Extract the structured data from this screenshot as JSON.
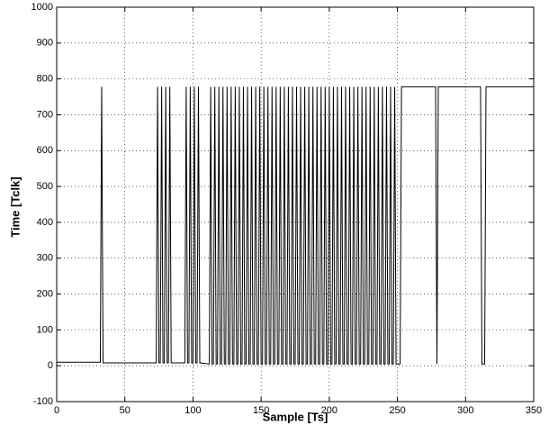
{
  "chart_data": {
    "type": "line",
    "x_label": "Sample [Ts]",
    "y_label": "Time [Tclk]",
    "xlim": [
      0,
      350
    ],
    "xticks": [
      0,
      50,
      100,
      150,
      200,
      250,
      300,
      350
    ],
    "ylim": [
      -100,
      1000
    ],
    "yticks": [
      -100,
      0,
      100,
      200,
      300,
      400,
      500,
      600,
      700,
      800,
      900,
      1000
    ],
    "grid": true,
    "color": "#000000",
    "x": [
      0,
      32,
      33,
      34,
      73,
      74,
      75,
      76,
      77,
      78,
      79,
      80,
      81,
      82,
      83,
      84,
      94,
      95,
      96,
      97,
      98,
      99,
      100,
      101,
      102,
      103,
      104,
      105,
      112,
      113,
      114,
      115,
      116,
      117,
      118,
      119,
      120,
      121,
      122,
      123,
      124,
      125,
      126,
      127,
      128,
      129,
      130,
      131,
      132,
      133,
      134,
      135,
      136,
      137,
      138,
      139,
      140,
      141,
      142,
      143,
      144,
      145,
      146,
      147,
      148,
      149,
      150,
      151,
      152,
      153,
      154,
      155,
      156,
      157,
      158,
      159,
      160,
      161,
      162,
      163,
      164,
      165,
      166,
      167,
      168,
      169,
      170,
      171,
      172,
      173,
      174,
      175,
      176,
      177,
      178,
      179,
      180,
      181,
      182,
      183,
      184,
      185,
      186,
      187,
      188,
      189,
      190,
      191,
      192,
      193,
      194,
      195,
      196,
      197,
      198,
      199,
      200,
      201,
      202,
      203,
      204,
      205,
      206,
      207,
      208,
      209,
      210,
      211,
      212,
      213,
      214,
      215,
      216,
      217,
      218,
      219,
      220,
      221,
      222,
      223,
      224,
      225,
      226,
      227,
      228,
      229,
      230,
      231,
      232,
      233,
      234,
      235,
      236,
      237,
      238,
      239,
      240,
      241,
      242,
      243,
      244,
      245,
      246,
      247,
      248,
      249,
      252,
      253,
      278,
      279,
      280,
      311,
      312,
      314,
      315,
      350
    ],
    "values": [
      10,
      10,
      778,
      8,
      8,
      778,
      8,
      8,
      778,
      8,
      8,
      778,
      8,
      8,
      778,
      8,
      8,
      778,
      8,
      8,
      778,
      8,
      8,
      778,
      8,
      8,
      778,
      8,
      5,
      778,
      5,
      5,
      778,
      5,
      5,
      778,
      5,
      5,
      778,
      5,
      5,
      778,
      5,
      5,
      778,
      5,
      5,
      778,
      5,
      5,
      778,
      5,
      5,
      778,
      5,
      5,
      778,
      5,
      5,
      778,
      5,
      5,
      778,
      5,
      5,
      778,
      5,
      5,
      778,
      5,
      5,
      778,
      5,
      5,
      778,
      5,
      5,
      778,
      5,
      5,
      778,
      5,
      5,
      778,
      5,
      5,
      778,
      5,
      5,
      778,
      5,
      5,
      778,
      5,
      5,
      778,
      5,
      5,
      778,
      5,
      5,
      778,
      5,
      5,
      778,
      5,
      5,
      778,
      5,
      5,
      778,
      5,
      5,
      778,
      5,
      5,
      778,
      5,
      5,
      778,
      5,
      5,
      778,
      5,
      5,
      778,
      5,
      5,
      778,
      5,
      5,
      778,
      5,
      5,
      778,
      5,
      5,
      778,
      5,
      5,
      778,
      5,
      5,
      778,
      5,
      5,
      778,
      5,
      5,
      778,
      5,
      5,
      778,
      5,
      5,
      778,
      5,
      5,
      778,
      5,
      5,
      778,
      5,
      5,
      778,
      5,
      5,
      778,
      778,
      5,
      778,
      778,
      5,
      5,
      778,
      778
    ]
  }
}
